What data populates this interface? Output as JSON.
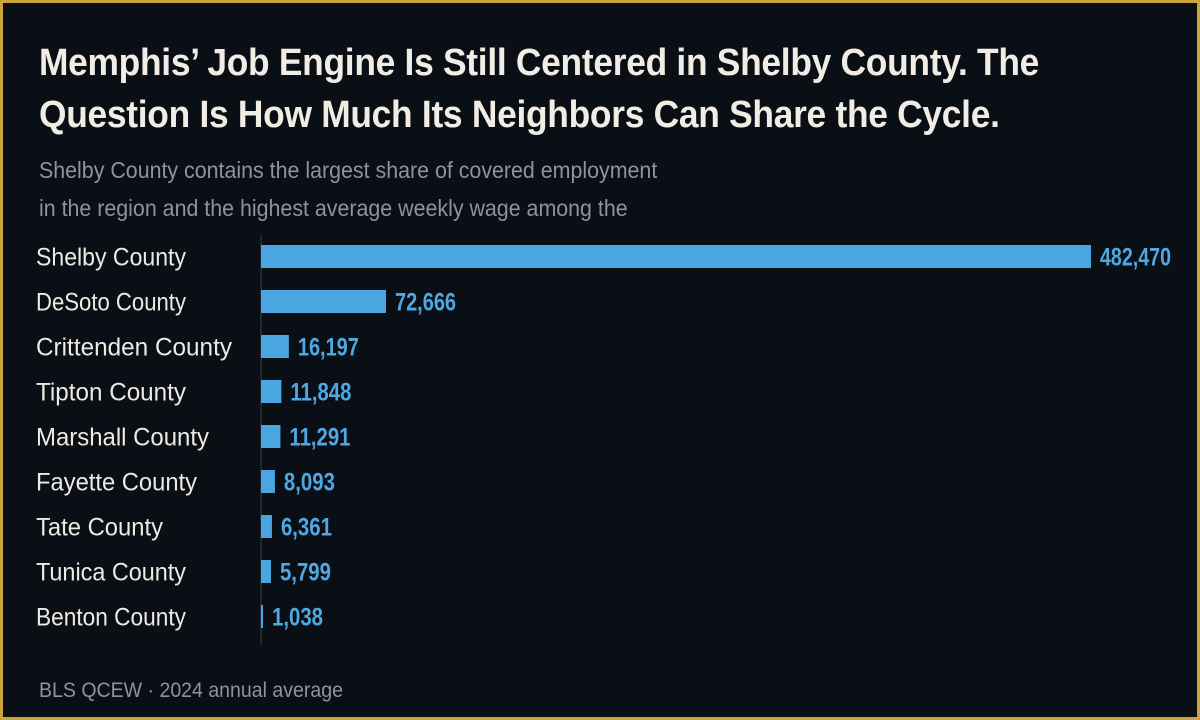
{
  "title": "Memphis’ Job Engine Is Still Centered in Shelby County. The Question Is How Much Its Neighbors Can Share the Cycle.",
  "subtitle_lines": [
    "Shelby County contains the largest share of covered employment",
    "in the region and the highest average weekly wage among the"
  ],
  "source": "BLS QCEW · 2024 annual average",
  "colors": {
    "bar": "#4aa6e0",
    "value_label": "#4fa8e2",
    "background": "#0a0e15",
    "border": "#c9a43a"
  },
  "chart_data": {
    "type": "bar",
    "orientation": "horizontal",
    "title": "Memphis’ Job Engine Is Still Centered in Shelby County. The Question Is How Much Its Neighbors Can Share the Cycle.",
    "categories": [
      "Shelby County",
      "DeSoto County",
      "Crittenden County",
      "Tipton County",
      "Marshall County",
      "Fayette County",
      "Tate County",
      "Tunica County",
      "Benton County"
    ],
    "values": [
      482470,
      72666,
      16197,
      11848,
      11291,
      8093,
      6361,
      5799,
      1038
    ],
    "value_labels": [
      "482,470",
      "72,666",
      "16,197",
      "11,848",
      "11,291",
      "8,093",
      "6,361",
      "5,799",
      "1,038"
    ],
    "xlim": [
      0,
      482470
    ],
    "grid": false,
    "legend": "none"
  }
}
